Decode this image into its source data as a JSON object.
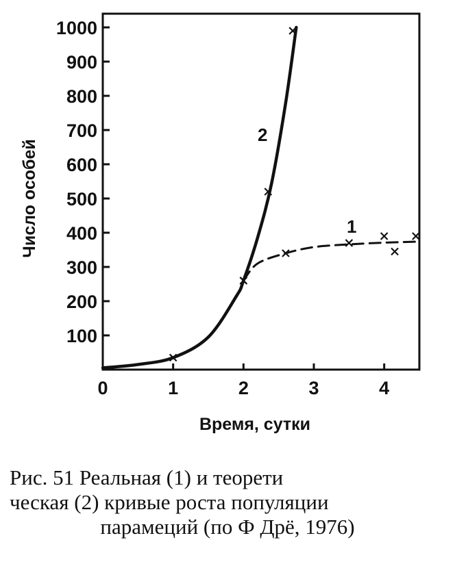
{
  "chart_data": {
    "type": "line",
    "xlabel": "Время, сутки",
    "ylabel": "Число особей",
    "xlim": [
      0,
      4.5
    ],
    "ylim": [
      0,
      1000
    ],
    "xticks": [
      "0",
      "1",
      "2",
      "3",
      "4"
    ],
    "yticks": [
      "100",
      "200",
      "300",
      "400",
      "500",
      "600",
      "700",
      "800",
      "900",
      "1000"
    ],
    "grid": false,
    "series": [
      {
        "name": "1",
        "style": "dashed",
        "curve": {
          "x": [
            2.0,
            2.2,
            2.6,
            3.0,
            3.5,
            4.0,
            4.5
          ],
          "y": [
            260,
            310,
            340,
            358,
            366,
            371,
            374
          ]
        },
        "markers": {
          "x": [
            2.0,
            2.6,
            3.5,
            4.0,
            4.15,
            4.45
          ],
          "y": [
            260,
            340,
            370,
            390,
            345,
            390
          ]
        }
      },
      {
        "name": "2",
        "style": "solid",
        "curve": {
          "x": [
            0,
            0.5,
            1.0,
            1.5,
            1.9,
            2.0,
            2.2,
            2.4,
            2.6,
            2.75
          ],
          "y": [
            5,
            15,
            35,
            95,
            215,
            260,
            385,
            545,
            780,
            1000
          ]
        },
        "markers": {
          "x": [
            1.0,
            2.0,
            2.35,
            2.7
          ],
          "y": [
            35,
            260,
            520,
            990
          ]
        }
      }
    ]
  },
  "caption": {
    "line1": "Рис. 51 Реальная (1) и теорети",
    "line2": "ческая (2) кривые роста популяции",
    "line3": "парамеций (по Ф Дрё, 1976)"
  },
  "colors": {
    "ink": "#111111",
    "background": "#ffffff"
  }
}
